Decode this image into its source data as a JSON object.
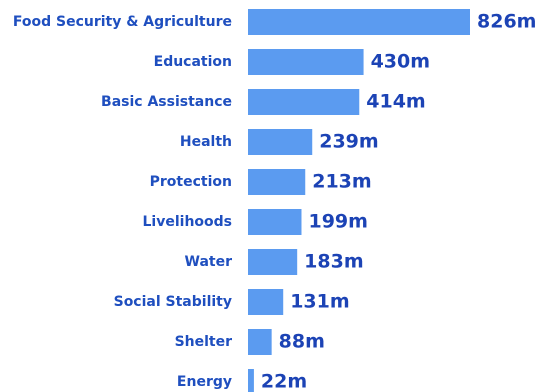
{
  "chart_data": {
    "type": "bar",
    "orientation": "horizontal",
    "categories": [
      "Food Security & Agriculture",
      "Education",
      "Basic Assistance",
      "Health",
      "Protection",
      "Livelihoods",
      "Water",
      "Social Stability",
      "Shelter",
      "Energy"
    ],
    "values": [
      826,
      430,
      414,
      239,
      213,
      199,
      183,
      131,
      88,
      22
    ],
    "value_labels": [
      "826m",
      "430m",
      "414m",
      "239m",
      "213m",
      "199m",
      "183m",
      "131m",
      "88m",
      "22m"
    ],
    "title": "",
    "xlabel": "",
    "ylabel": "",
    "xlim": [
      0,
      826
    ],
    "grid": false,
    "legend": "none"
  },
  "colors": {
    "bar": "#5b9bf0",
    "category_text": "#1f4fbf",
    "value_text": "#1c43b5",
    "background": "#ffffff"
  }
}
